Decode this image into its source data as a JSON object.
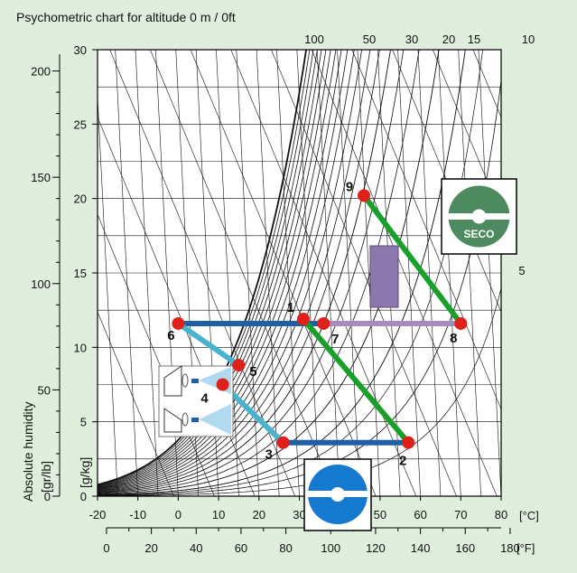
{
  "title": "Psychometric chart for altitude 0 m / 0ft",
  "colors": {
    "background": "#dfeedd",
    "plot": "#ffffff",
    "grid": "#111111",
    "point": "#e0201b",
    "line_blue": "#1f5fa6",
    "line_cyan": "#47b3cf",
    "line_green": "#19a02a",
    "line_purple": "#a68bbf",
    "box_purple": "#8c78ad",
    "seco_green": "#4e8a5f",
    "wheel_blue": "#1479cf"
  },
  "icons": [
    "humidifier-icon",
    "seco-wheel-icon",
    "desiccant-wheel-icon"
  ],
  "chart_data": {
    "type": "psychrometric",
    "title": "Psychometric chart for altitude 0 m / 0ft",
    "xlabel_c": "[°C]",
    "xlabel_f": "[°F]",
    "ylabel_left": "Absolute humidity",
    "ylabel_gr": "[gr/lb]",
    "ylabel_gkg": "[g/kg]",
    "x_range_c": [
      -20,
      80
    ],
    "y_range_gkg": [
      0,
      30
    ],
    "x_ticks_c": [
      "-20",
      "-10",
      "0",
      "10",
      "20",
      "30",
      "40",
      "50",
      "60",
      "70",
      "80"
    ],
    "x_ticks_f": [
      "0",
      "20",
      "40",
      "60",
      "80",
      "100",
      "120",
      "140",
      "160",
      "180"
    ],
    "y_ticks_gkg": [
      "0",
      "5",
      "10",
      "15",
      "20",
      "25",
      "30"
    ],
    "y_ticks_gr": [
      "0",
      "50",
      "100",
      "150",
      "200"
    ],
    "rh_labels": [
      "100",
      "50",
      "30",
      "20",
      "15",
      "10",
      "5"
    ],
    "points": [
      {
        "label": "1",
        "t": 31,
        "x": 11.9
      },
      {
        "label": "2",
        "t": 57,
        "x": 3.6
      },
      {
        "label": "3",
        "t": 26,
        "x": 3.6
      },
      {
        "label": "4",
        "t": 11,
        "x": 7.5
      },
      {
        "label": "5",
        "t": 15,
        "x": 8.8
      },
      {
        "label": "6",
        "t": 0,
        "x": 11.6
      },
      {
        "label": "7",
        "t": 36,
        "x": 11.6
      },
      {
        "label": "8",
        "t": 70,
        "x": 11.6
      },
      {
        "label": "9",
        "t": 46,
        "x": 20.2
      }
    ],
    "segments": [
      {
        "from": "6",
        "to": "7",
        "color": "line_blue"
      },
      {
        "from": "7",
        "to": "8",
        "color": "line_purple"
      },
      {
        "from": "3",
        "to": "2",
        "color": "line_blue"
      },
      {
        "from": "6",
        "to": "5",
        "color": "line_cyan"
      },
      {
        "from": "4",
        "to": "3",
        "color": "line_cyan"
      },
      {
        "from": "1",
        "to": "2",
        "color": "line_green"
      },
      {
        "from": "9",
        "to": "8",
        "color": "line_green"
      }
    ],
    "seco_text": "SECO"
  }
}
